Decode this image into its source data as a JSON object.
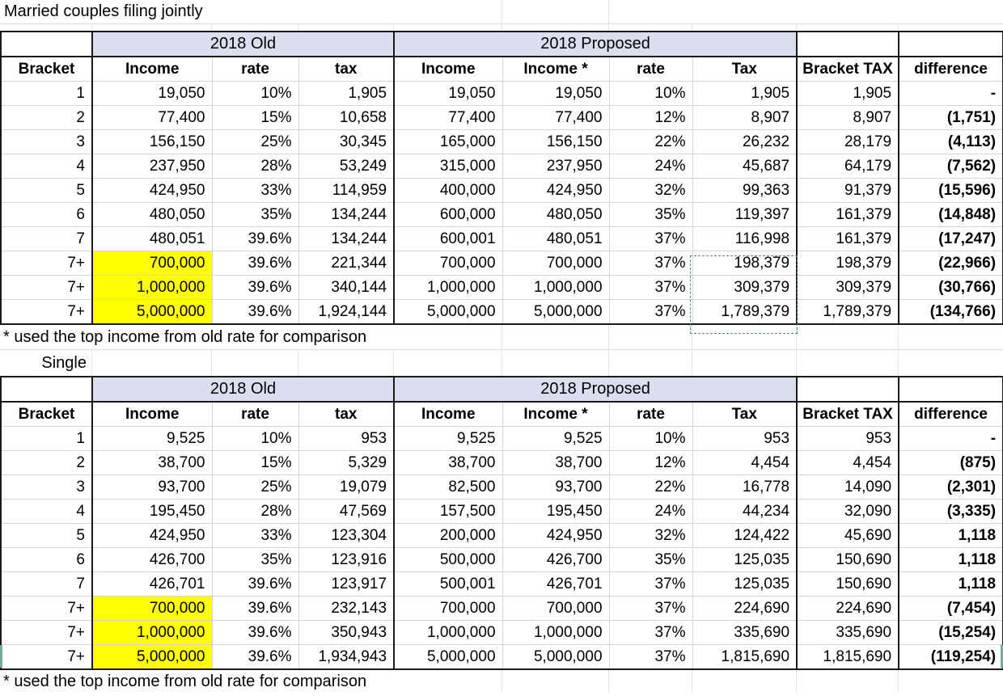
{
  "titles": {
    "married": "Married couples filing jointly",
    "single": "Single"
  },
  "footnote": "* used the top income from old rate for comparison",
  "group_headers": {
    "old": "2018 Old",
    "proposed": "2018 Proposed"
  },
  "columns": [
    "Bracket",
    "Income",
    "rate",
    "tax",
    "Income",
    "Income *",
    "rate",
    "Tax",
    "Bracket TAX",
    "difference"
  ],
  "colors": {
    "band_fill": "#d9dfef",
    "highlight": "#ffff00",
    "gridline": "#d4d4d4",
    "table_border": "#1a1a1a",
    "selection_ants": "#55917f"
  },
  "tables": {
    "married": {
      "rows": [
        {
          "bracket": "1",
          "old_income": "19,050",
          "old_rate": "10%",
          "old_tax": "1,905",
          "p_income": "19,050",
          "p_income_star": "19,050",
          "p_rate": "10%",
          "p_tax": "1,905",
          "bracket_tax": "1,905",
          "difference": "-",
          "highlight": false
        },
        {
          "bracket": "2",
          "old_income": "77,400",
          "old_rate": "15%",
          "old_tax": "10,658",
          "p_income": "77,400",
          "p_income_star": "77,400",
          "p_rate": "12%",
          "p_tax": "8,907",
          "bracket_tax": "8,907",
          "difference": "(1,751)",
          "highlight": false
        },
        {
          "bracket": "3",
          "old_income": "156,150",
          "old_rate": "25%",
          "old_tax": "30,345",
          "p_income": "165,000",
          "p_income_star": "156,150",
          "p_rate": "22%",
          "p_tax": "26,232",
          "bracket_tax": "28,179",
          "difference": "(4,113)",
          "highlight": false
        },
        {
          "bracket": "4",
          "old_income": "237,950",
          "old_rate": "28%",
          "old_tax": "53,249",
          "p_income": "315,000",
          "p_income_star": "237,950",
          "p_rate": "24%",
          "p_tax": "45,687",
          "bracket_tax": "64,179",
          "difference": "(7,562)",
          "highlight": false
        },
        {
          "bracket": "5",
          "old_income": "424,950",
          "old_rate": "33%",
          "old_tax": "114,959",
          "p_income": "400,000",
          "p_income_star": "424,950",
          "p_rate": "32%",
          "p_tax": "99,363",
          "bracket_tax": "91,379",
          "difference": "(15,596)",
          "highlight": false
        },
        {
          "bracket": "6",
          "old_income": "480,050",
          "old_rate": "35%",
          "old_tax": "134,244",
          "p_income": "600,000",
          "p_income_star": "480,050",
          "p_rate": "35%",
          "p_tax": "119,397",
          "bracket_tax": "161,379",
          "difference": "(14,848)",
          "highlight": false
        },
        {
          "bracket": "7",
          "old_income": "480,051",
          "old_rate": "39.6%",
          "old_tax": "134,244",
          "p_income": "600,001",
          "p_income_star": "480,051",
          "p_rate": "37%",
          "p_tax": "116,998",
          "bracket_tax": "161,379",
          "difference": "(17,247)",
          "highlight": false
        },
        {
          "bracket": "7+",
          "old_income": "700,000",
          "old_rate": "39.6%",
          "old_tax": "221,344",
          "p_income": "700,000",
          "p_income_star": "700,000",
          "p_rate": "37%",
          "p_tax": "198,379",
          "bracket_tax": "198,379",
          "difference": "(22,966)",
          "highlight": true
        },
        {
          "bracket": "7+",
          "old_income": "1,000,000",
          "old_rate": "39.6%",
          "old_tax": "340,144",
          "p_income": "1,000,000",
          "p_income_star": "1,000,000",
          "p_rate": "37%",
          "p_tax": "309,379",
          "bracket_tax": "309,379",
          "difference": "(30,766)",
          "highlight": true
        },
        {
          "bracket": "7+",
          "old_income": "5,000,000",
          "old_rate": "39.6%",
          "old_tax": "1,924,144",
          "p_income": "5,000,000",
          "p_income_star": "5,000,000",
          "p_rate": "37%",
          "p_tax": "1,789,379",
          "bracket_tax": "1,789,379",
          "difference": "(134,766)",
          "highlight": true
        }
      ]
    },
    "single": {
      "rows": [
        {
          "bracket": "1",
          "old_income": "9,525",
          "old_rate": "10%",
          "old_tax": "953",
          "p_income": "9,525",
          "p_income_star": "9,525",
          "p_rate": "10%",
          "p_tax": "953",
          "bracket_tax": "953",
          "difference": "-",
          "highlight": false
        },
        {
          "bracket": "2",
          "old_income": "38,700",
          "old_rate": "15%",
          "old_tax": "5,329",
          "p_income": "38,700",
          "p_income_star": "38,700",
          "p_rate": "12%",
          "p_tax": "4,454",
          "bracket_tax": "4,454",
          "difference": "(875)",
          "highlight": false
        },
        {
          "bracket": "3",
          "old_income": "93,700",
          "old_rate": "25%",
          "old_tax": "19,079",
          "p_income": "82,500",
          "p_income_star": "93,700",
          "p_rate": "22%",
          "p_tax": "16,778",
          "bracket_tax": "14,090",
          "difference": "(2,301)",
          "highlight": false
        },
        {
          "bracket": "4",
          "old_income": "195,450",
          "old_rate": "28%",
          "old_tax": "47,569",
          "p_income": "157,500",
          "p_income_star": "195,450",
          "p_rate": "24%",
          "p_tax": "44,234",
          "bracket_tax": "32,090",
          "difference": "(3,335)",
          "highlight": false
        },
        {
          "bracket": "5",
          "old_income": "424,950",
          "old_rate": "33%",
          "old_tax": "123,304",
          "p_income": "200,000",
          "p_income_star": "424,950",
          "p_rate": "32%",
          "p_tax": "124,422",
          "bracket_tax": "45,690",
          "difference": "1,118",
          "highlight": false
        },
        {
          "bracket": "6",
          "old_income": "426,700",
          "old_rate": "35%",
          "old_tax": "123,916",
          "p_income": "500,000",
          "p_income_star": "426,700",
          "p_rate": "35%",
          "p_tax": "125,035",
          "bracket_tax": "150,690",
          "difference": "1,118",
          "highlight": false
        },
        {
          "bracket": "7",
          "old_income": "426,701",
          "old_rate": "39.6%",
          "old_tax": "123,917",
          "p_income": "500,001",
          "p_income_star": "426,701",
          "p_rate": "37%",
          "p_tax": "125,035",
          "bracket_tax": "150,690",
          "difference": "1,118",
          "highlight": false
        },
        {
          "bracket": "7+",
          "old_income": "700,000",
          "old_rate": "39.6%",
          "old_tax": "232,143",
          "p_income": "700,000",
          "p_income_star": "700,000",
          "p_rate": "37%",
          "p_tax": "224,690",
          "bracket_tax": "224,690",
          "difference": "(7,454)",
          "highlight": true
        },
        {
          "bracket": "7+",
          "old_income": "1,000,000",
          "old_rate": "39.6%",
          "old_tax": "350,943",
          "p_income": "1,000,000",
          "p_income_star": "1,000,000",
          "p_rate": "37%",
          "p_tax": "335,690",
          "bracket_tax": "335,690",
          "difference": "(15,254)",
          "highlight": true
        },
        {
          "bracket": "7+",
          "old_income": "5,000,000",
          "old_rate": "39.6%",
          "old_tax": "1,934,943",
          "p_income": "5,000,000",
          "p_income_star": "5,000,000",
          "p_rate": "37%",
          "p_tax": "1,815,690",
          "bracket_tax": "1,815,690",
          "difference": "(119,254)",
          "highlight": true
        }
      ]
    }
  }
}
